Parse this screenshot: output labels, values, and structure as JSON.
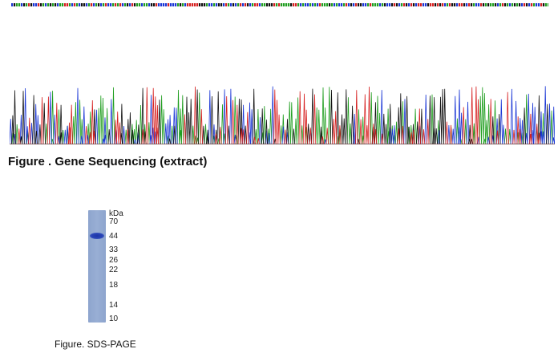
{
  "sequencing": {
    "caption": "Figure . Gene Sequencing (extract)",
    "base_colors": {
      "A": "#1f9e1f",
      "C": "#1a36d6",
      "G": "#111111",
      "T": "#d62020"
    }
  },
  "sds_page": {
    "caption": "Figure. SDS-PAGE",
    "unit": "kDa",
    "markers": [
      "70",
      "44",
      "33",
      "26",
      "22",
      "18",
      "14",
      "10"
    ],
    "band_colors": {
      "lane": "#95abd3",
      "band": "#2340b3"
    }
  }
}
